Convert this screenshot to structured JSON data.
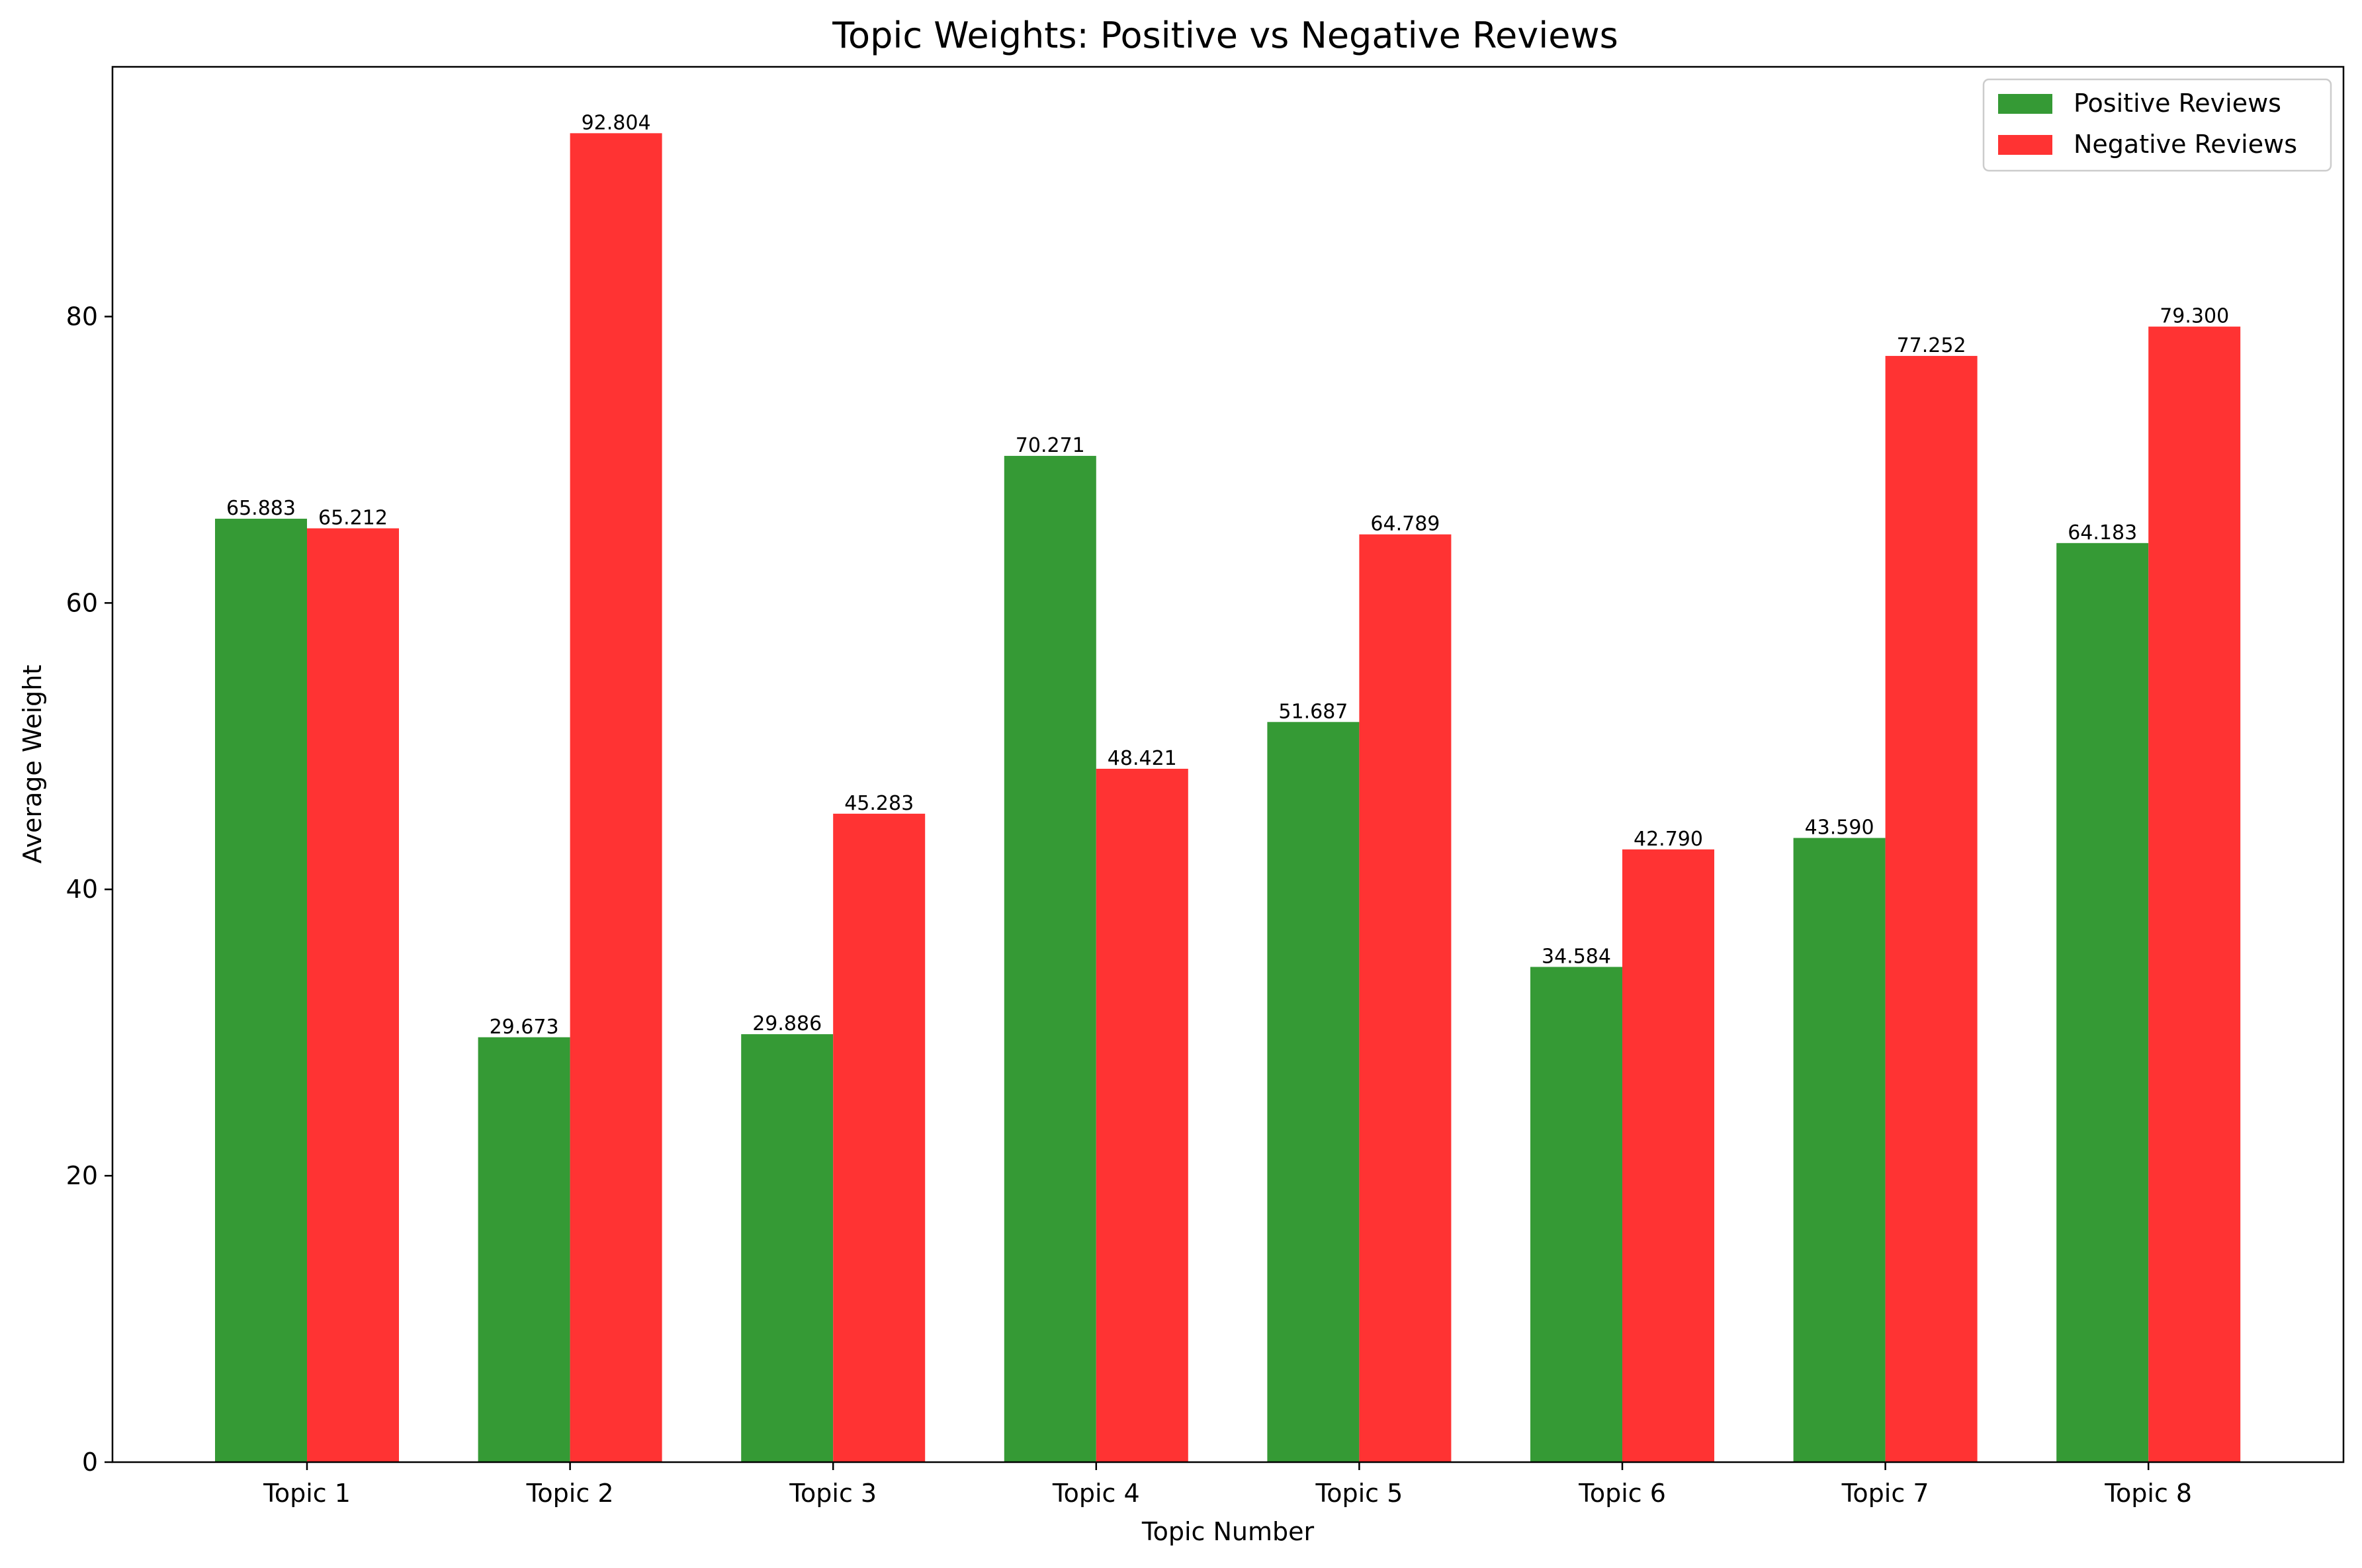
{
  "chart_data": {
    "type": "bar",
    "title": "Topic Weights: Positive vs Negative Reviews",
    "xlabel": "Topic Number",
    "ylabel": "Average Weight",
    "categories": [
      "Topic 1",
      "Topic 2",
      "Topic 3",
      "Topic 4",
      "Topic 5",
      "Topic 6",
      "Topic 7",
      "Topic 8"
    ],
    "series": [
      {
        "name": "Positive Reviews",
        "color": "#359a35",
        "values": [
          65.883,
          29.673,
          29.886,
          70.271,
          51.687,
          34.584,
          43.59,
          64.183
        ],
        "labels": [
          "65.883",
          "29.673",
          "29.886",
          "70.271",
          "51.687",
          "34.584",
          "43.590",
          "64.183"
        ]
      },
      {
        "name": "Negative Reviews",
        "color": "#ff3333",
        "values": [
          65.212,
          92.804,
          45.283,
          48.421,
          64.789,
          42.79,
          77.252,
          79.3
        ],
        "labels": [
          "65.212",
          "92.804",
          "45.283",
          "48.421",
          "64.789",
          "42.790",
          "77.252",
          "79.300"
        ]
      }
    ],
    "yticks": [
      0,
      20,
      40,
      60,
      80
    ],
    "ylim": [
      0,
      97.44
    ],
    "grid": false,
    "legend_position": "top-right"
  }
}
